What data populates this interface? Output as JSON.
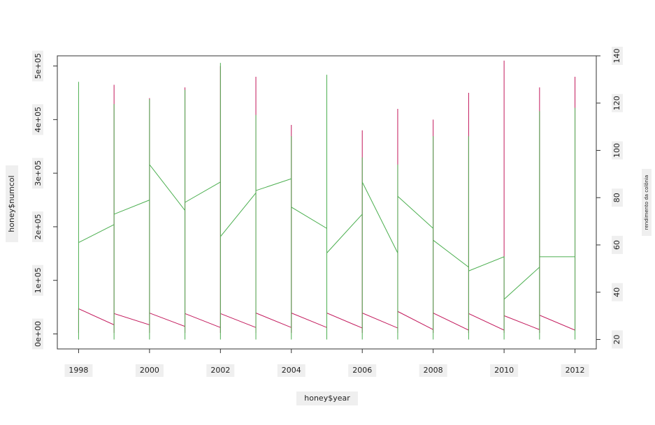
{
  "chart_data": {
    "type": "line",
    "xlabel": "honey$year",
    "ylabel": "honey$numcol",
    "y2label": "rendimento da colônia",
    "xlim": [
      1997.4,
      2012.6
    ],
    "xticks": [
      1998,
      2000,
      2002,
      2004,
      2006,
      2008,
      2010,
      2012
    ],
    "ylim": [
      -28000,
      519000
    ],
    "yticks": [
      {
        "value": 0,
        "label": "0e+00"
      },
      {
        "value": 100000,
        "label": "1e+05"
      },
      {
        "value": 200000,
        "label": "2e+05"
      },
      {
        "value": 300000,
        "label": "3e+05"
      },
      {
        "value": 400000,
        "label": "4e+05"
      },
      {
        "value": 500000,
        "label": "5e+05"
      }
    ],
    "y2lim": [
      16,
      140
    ],
    "y2ticks": [
      20,
      40,
      60,
      80,
      100,
      120,
      140
    ],
    "series": [
      {
        "color": "#c2185b",
        "x": [
          1998,
          1998,
          1998,
          1999,
          1999,
          1999,
          1999,
          2000,
          2000,
          2000,
          2000,
          2001,
          2001,
          2001,
          2001,
          2002,
          2002,
          2002,
          2002,
          2003,
          2003,
          2003,
          2003,
          2004,
          2004,
          2004,
          2004,
          2005,
          2005,
          2005,
          2005,
          2006,
          2006,
          2006,
          2006,
          2007,
          2007,
          2007,
          2007,
          2008,
          2008,
          2008,
          2008,
          2009,
          2009,
          2009,
          2009,
          2010,
          2010,
          2010,
          2010,
          2011,
          2011,
          2011,
          2011,
          2012,
          2012,
          2012
        ],
        "values": [
          47000,
          2000,
          47000,
          17000,
          465000,
          2000,
          38000,
          17000,
          440000,
          2000,
          39000,
          14000,
          460000,
          2000,
          38000,
          12000,
          500000,
          2000,
          38000,
          12000,
          480000,
          2000,
          39000,
          12000,
          390000,
          2000,
          39000,
          12000,
          470000,
          2000,
          39000,
          11000,
          380000,
          2000,
          39000,
          11000,
          420000,
          2000,
          42000,
          8000,
          400000,
          2000,
          39000,
          7000,
          450000,
          2000,
          38000,
          7000,
          510000,
          2000,
          34000,
          8000,
          460000,
          2000,
          35000,
          7000,
          480000,
          7000
        ]
      },
      {
        "color": "#4caf50",
        "axis": "y2",
        "x": [
          1998,
          1998,
          1998,
          1998,
          1999,
          1999,
          1999,
          1999,
          2000,
          2000,
          2000,
          2000,
          2001,
          2001,
          2001,
          2001,
          2002,
          2002,
          2002,
          2002,
          2003,
          2003,
          2003,
          2003,
          2004,
          2004,
          2004,
          2004,
          2005,
          2005,
          2005,
          2005,
          2006,
          2006,
          2006,
          2006,
          2007,
          2007,
          2007,
          2007,
          2008,
          2008,
          2008,
          2008,
          2009,
          2009,
          2009,
          2009,
          2010,
          2010,
          2010,
          2010,
          2011,
          2011,
          2011,
          2011,
          2012,
          2012,
          2012
        ],
        "values": [
          61,
          129,
          20,
          61,
          68.6,
          119.6,
          20,
          73,
          79,
          121.7,
          20,
          94,
          74.6,
          125.6,
          20,
          78,
          86.6,
          137,
          20,
          63.5,
          82,
          115,
          20,
          83,
          88,
          106,
          20,
          76,
          67,
          132,
          20,
          56.6,
          73,
          97,
          20,
          86.6,
          56.6,
          94,
          20,
          80.6,
          67,
          106,
          20,
          62,
          50.6,
          106,
          20,
          49,
          55,
          55,
          20,
          37,
          50.6,
          116.6,
          20,
          55,
          55,
          118,
          20
        ]
      }
    ]
  }
}
